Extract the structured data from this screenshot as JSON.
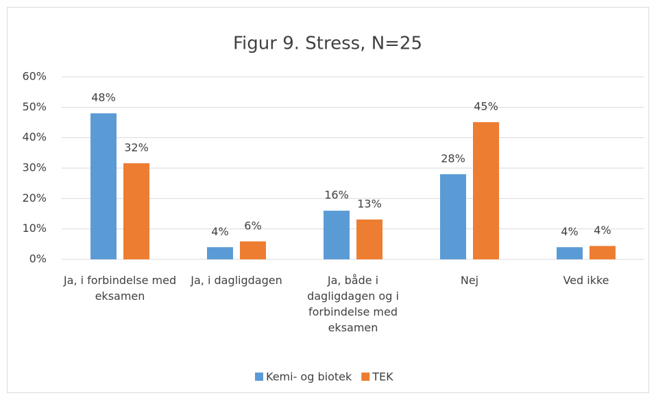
{
  "chart_data": {
    "type": "bar",
    "title": "Figur 9. Stress, N=25",
    "categories": [
      "Ja, i forbindelse med eksamen",
      "Ja, i dagligdagen",
      "Ja, både i dagligdagen og i forbindelse med eksamen",
      "Nej",
      "Ved ikke"
    ],
    "series": [
      {
        "name": "Kemi- og biotek",
        "color": "#5b9bd5",
        "values": [
          48,
          4,
          16,
          28,
          4
        ],
        "value_labels": [
          "48%",
          "4%",
          "16%",
          "28%",
          "4%"
        ]
      },
      {
        "name": "TEK",
        "color": "#ed7d31",
        "values": [
          31.6,
          5.9,
          13.1,
          45.1,
          4.4
        ],
        "value_labels": [
          "32%",
          "6%",
          "13%",
          "45%",
          "4%"
        ]
      }
    ],
    "ylim": [
      0,
      60
    ],
    "yticks": [
      {
        "value": 0,
        "label": "0%"
      },
      {
        "value": 10,
        "label": "10%"
      },
      {
        "value": 20,
        "label": "20%"
      },
      {
        "value": 30,
        "label": "30%"
      },
      {
        "value": 40,
        "label": "40%"
      },
      {
        "value": 50,
        "label": "50%"
      },
      {
        "value": 60,
        "label": "60%"
      }
    ],
    "grid": true,
    "legend": "bottom"
  }
}
